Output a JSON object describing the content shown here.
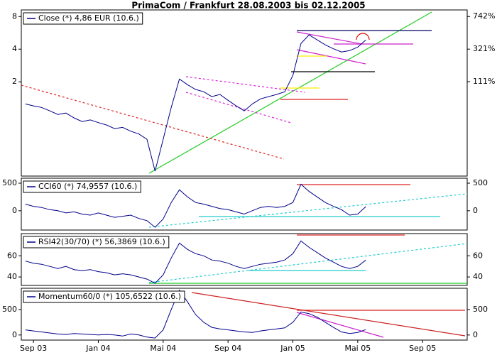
{
  "chart_data": [
    {
      "type": "line",
      "title": "PrimaCom / Frankfurt 28.08.2003 bis 02.12.2005",
      "yscale": "log",
      "ylim": [
        0.27,
        9.2
      ],
      "yticks": [
        2,
        4,
        8
      ],
      "y2scale": "log-growth",
      "y2lim": [
        -71.6,
        868
      ],
      "y2ticks": [
        {
          "value": 111,
          "label": "111%"
        },
        {
          "value": 321,
          "label": "321%"
        },
        {
          "value": 742,
          "label": "742%"
        }
      ],
      "series": [
        {
          "name": "Close (*) 4,86 EUR (10.6.)",
          "color": "#00008b",
          "values": [
            1.25,
            1.2,
            1.16,
            1.08,
            1.0,
            1.03,
            0.93,
            0.86,
            0.89,
            0.84,
            0.8,
            0.74,
            0.76,
            0.7,
            0.66,
            0.59,
            0.3,
            0.59,
            1.16,
            2.12,
            1.88,
            1.7,
            1.62,
            1.46,
            1.53,
            1.35,
            1.2,
            1.08,
            1.25,
            1.39,
            1.46,
            1.53,
            1.62,
            2.29,
            4.51,
            5.41,
            4.87,
            4.38,
            4.03,
            3.77,
            3.88,
            4.18,
            4.86,
            null,
            null,
            null,
            null,
            null,
            null,
            null,
            null,
            null,
            null,
            null,
            null
          ]
        }
      ]
    },
    {
      "type": "line",
      "ylim": [
        -350,
        590
      ],
      "yticks": [
        0,
        500
      ],
      "mirror_ticks": true,
      "series": [
        {
          "name": "CCI60 (*) 74,9557 (10.6.)",
          "color": "#00008b",
          "values": [
            120,
            80,
            60,
            20,
            0,
            -40,
            -20,
            -60,
            -80,
            -40,
            -80,
            -120,
            -100,
            -80,
            -140,
            -180,
            -300,
            -150,
            150,
            380,
            250,
            150,
            120,
            80,
            40,
            20,
            -20,
            -60,
            0,
            60,
            80,
            60,
            80,
            150,
            480,
            350,
            250,
            150,
            80,
            20,
            -80,
            -60,
            75,
            null,
            null,
            null,
            null,
            null,
            null,
            null,
            null,
            null,
            null,
            null,
            null
          ]
        }
      ]
    },
    {
      "type": "line",
      "ylim": [
        32,
        81
      ],
      "yticks": [
        40,
        60
      ],
      "mirror_ticks": true,
      "series": [
        {
          "name": "RSI42(30/70) (*) 56,3869 (10.6.)",
          "color": "#00008b",
          "values": [
            55,
            53,
            52,
            50,
            48,
            50,
            47,
            46,
            47,
            45,
            44,
            42,
            43,
            42,
            40,
            38,
            34,
            42,
            58,
            72,
            66,
            62,
            60,
            56,
            55,
            53,
            50,
            48,
            50,
            52,
            53,
            54,
            56,
            62,
            74,
            68,
            63,
            58,
            54,
            50,
            48,
            50,
            56,
            null,
            null,
            null,
            null,
            null,
            null,
            null,
            null,
            null,
            null,
            null,
            null
          ]
        }
      ]
    },
    {
      "type": "line",
      "ylim": [
        -100,
        917
      ],
      "yticks": [
        0,
        500
      ],
      "mirror_ticks": true,
      "categories": [
        null,
        "Sep 03",
        null,
        null,
        null,
        null,
        null,
        null,
        null,
        "Jan 04",
        null,
        null,
        null,
        null,
        null,
        null,
        null,
        "Mai 04",
        null,
        null,
        null,
        null,
        null,
        null,
        null,
        "Sep 04",
        null,
        null,
        null,
        null,
        null,
        null,
        null,
        "Jan 05",
        null,
        null,
        null,
        null,
        null,
        null,
        null,
        "Mai 05",
        null,
        null,
        null,
        null,
        null,
        null,
        null,
        "Sep 05",
        null,
        null,
        null,
        null,
        null
      ],
      "series": [
        {
          "name": "Momentum60/0 (*) 105,6522 (10.6.)",
          "color": "#00008b",
          "values": [
            100,
            80,
            60,
            40,
            20,
            10,
            30,
            20,
            10,
            0,
            10,
            0,
            -20,
            20,
            0,
            -40,
            -60,
            100,
            500,
            880,
            650,
            400,
            250,
            150,
            120,
            100,
            80,
            60,
            50,
            80,
            100,
            120,
            140,
            250,
            450,
            420,
            350,
            250,
            150,
            60,
            30,
            50,
            106,
            null,
            null,
            null,
            null,
            null,
            null,
            null,
            null,
            null,
            null,
            null,
            null
          ]
        }
      ]
    }
  ]
}
